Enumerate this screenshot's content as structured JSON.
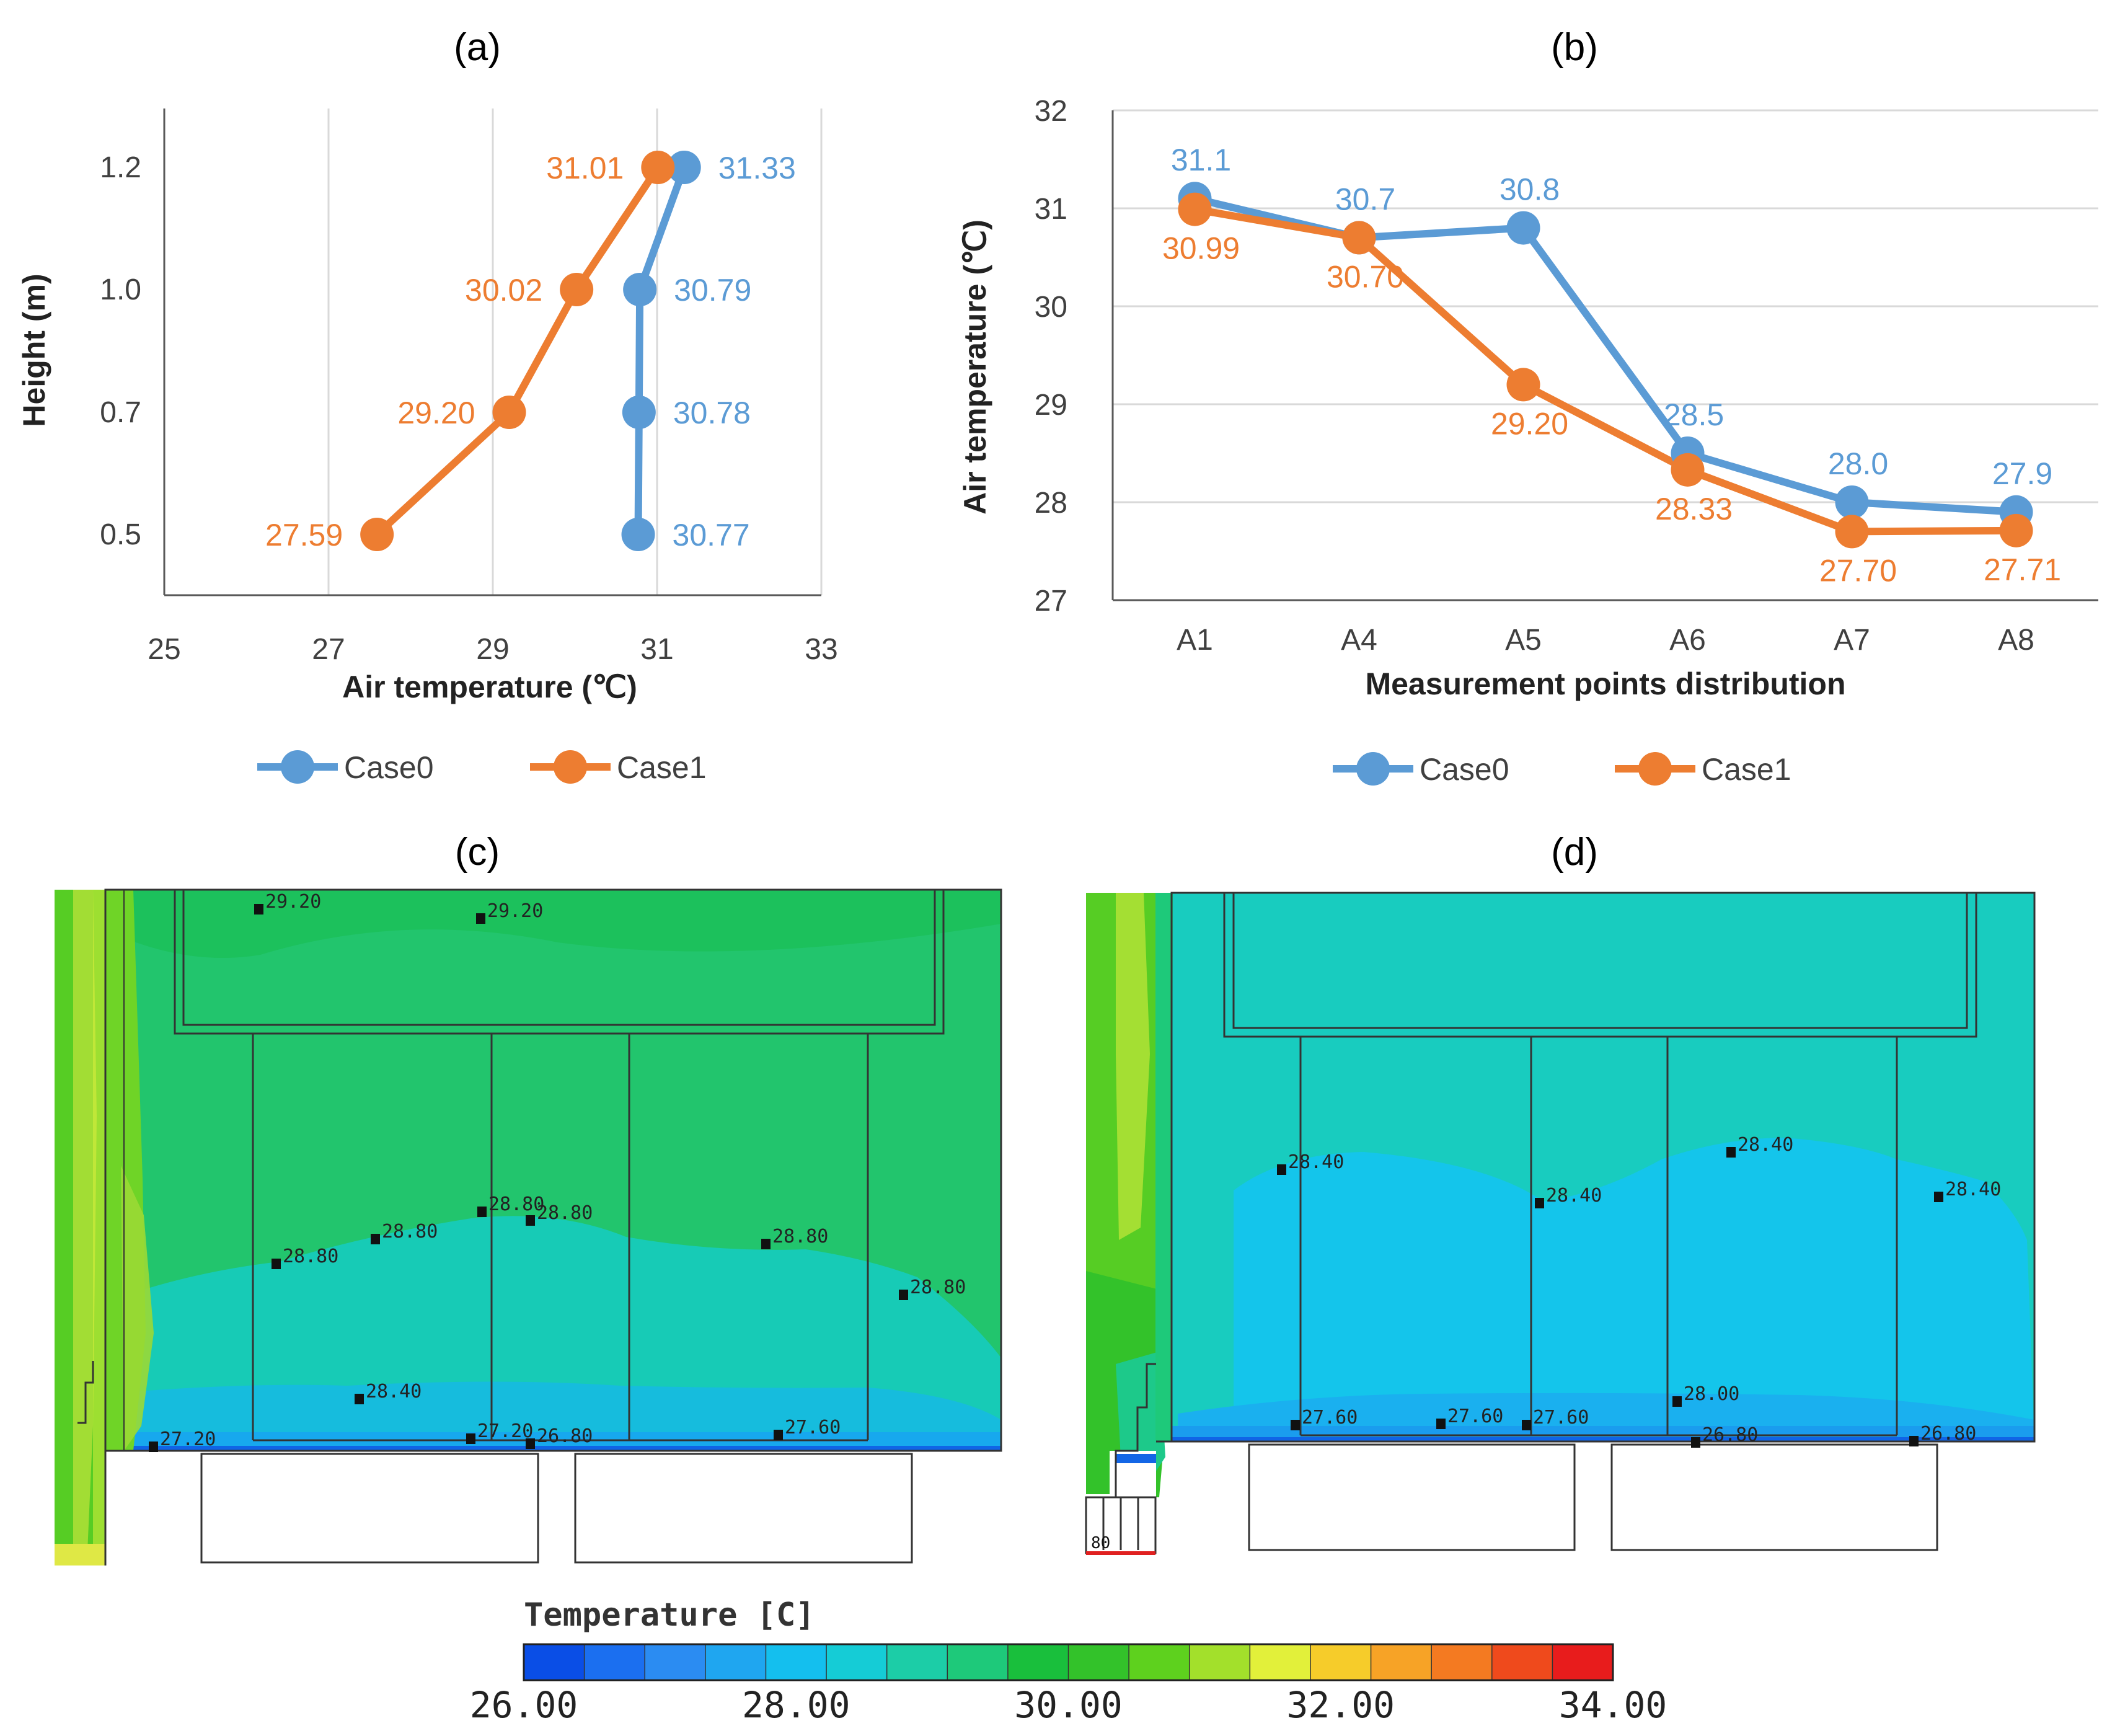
{
  "panels": {
    "a": "(a)",
    "b": "(b)",
    "c": "(c)",
    "d": "(d)"
  },
  "colors": {
    "case0": "#5b9bd5",
    "case1": "#ed7d31",
    "grid": "#d9d9d9",
    "axis": "#595959"
  },
  "chart_data": [
    {
      "type": "line",
      "panel": "a",
      "title": "",
      "xlabel": "Air temperature (℃)",
      "ylabel": "Height (m)",
      "xlim": [
        25,
        33
      ],
      "x_ticks": [
        "25",
        "27",
        "29",
        "31",
        "33"
      ],
      "y_ticks": [
        "0.5",
        "0.7",
        "1.0",
        "1.2"
      ],
      "legend_position": "bottom",
      "series": [
        {
          "name": "Case0",
          "color": "#5b9bd5",
          "x": [
            30.77,
            30.78,
            30.79,
            31.33
          ],
          "y": [
            0.5,
            0.7,
            1.0,
            1.2
          ],
          "labels": [
            "30.77",
            "30.78",
            "30.79",
            "31.33"
          ]
        },
        {
          "name": "Case1",
          "color": "#ed7d31",
          "x": [
            27.59,
            29.2,
            30.02,
            31.01
          ],
          "y": [
            0.5,
            0.7,
            1.0,
            1.2
          ],
          "labels": [
            "27.59",
            "29.20",
            "30.02",
            "31.01"
          ]
        }
      ]
    },
    {
      "type": "line",
      "panel": "b",
      "title": "",
      "xlabel": "Measurement points distribution",
      "ylabel": "Air temperature (℃)",
      "ylim": [
        27,
        32
      ],
      "y_ticks": [
        "27",
        "28",
        "29",
        "30",
        "31",
        "32"
      ],
      "categories": [
        "A1",
        "A4",
        "A5",
        "A6",
        "A7",
        "A8"
      ],
      "legend_position": "bottom",
      "series": [
        {
          "name": "Case0",
          "color": "#5b9bd5",
          "values": [
            31.1,
            30.7,
            30.8,
            28.5,
            28.0,
            27.9
          ],
          "labels": [
            "31.1",
            "30.7",
            "30.8",
            "28.5",
            "28.0",
            "27.9"
          ]
        },
        {
          "name": "Case1",
          "color": "#ed7d31",
          "values": [
            30.99,
            30.7,
            29.2,
            28.33,
            27.7,
            27.71
          ],
          "labels": [
            "30.99",
            "30.70",
            "29.20",
            "28.33",
            "27.70",
            "27.71"
          ]
        }
      ]
    },
    {
      "type": "heatmap",
      "panel": "c",
      "probe_labels": [
        "29.20",
        "29.20",
        "28.80",
        "28.80",
        "28.80",
        "28.80",
        "28.80",
        "28.80",
        "28.40",
        "27.20",
        "27.20",
        "26.80",
        "27.60"
      ]
    },
    {
      "type": "heatmap",
      "panel": "d",
      "probe_labels": [
        "28.40",
        "28.40",
        "28.40",
        "28.40",
        "27.60",
        "27.60",
        "27.60",
        "28.00",
        "26.80",
        "26.80"
      ],
      "edge_label": "80"
    }
  ],
  "colorbar": {
    "title": "Temperature [C]",
    "tick_labels": [
      "26.00",
      "28.00",
      "30.00",
      "32.00",
      "34.00"
    ],
    "colors": [
      "#0a4ee6",
      "#1b6ff0",
      "#2b8cf2",
      "#1fa6f0",
      "#14bfee",
      "#15ccd6",
      "#1ccda7",
      "#1ec97a",
      "#19bf3c",
      "#33c22a",
      "#5ed11e",
      "#a3e02b",
      "#e2f03a",
      "#f6cc2a",
      "#f7a326",
      "#f47a21",
      "#ef4a1c",
      "#e81c1c"
    ]
  }
}
